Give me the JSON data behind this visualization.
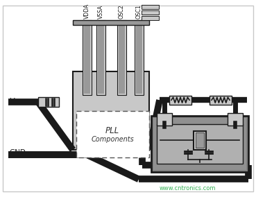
{
  "bg_color": "#ffffff",
  "dark": "#1a1a1a",
  "lgray": "#c8c8c8",
  "mgray": "#999999",
  "dgray": "#707070",
  "white": "#ffffff",
  "pin_labels": [
    "VDDA",
    "VSSA",
    "OSC2",
    "OSC1"
  ],
  "watermark": "www.cntronics.com",
  "wire_lw": 7,
  "border_lw": 1
}
